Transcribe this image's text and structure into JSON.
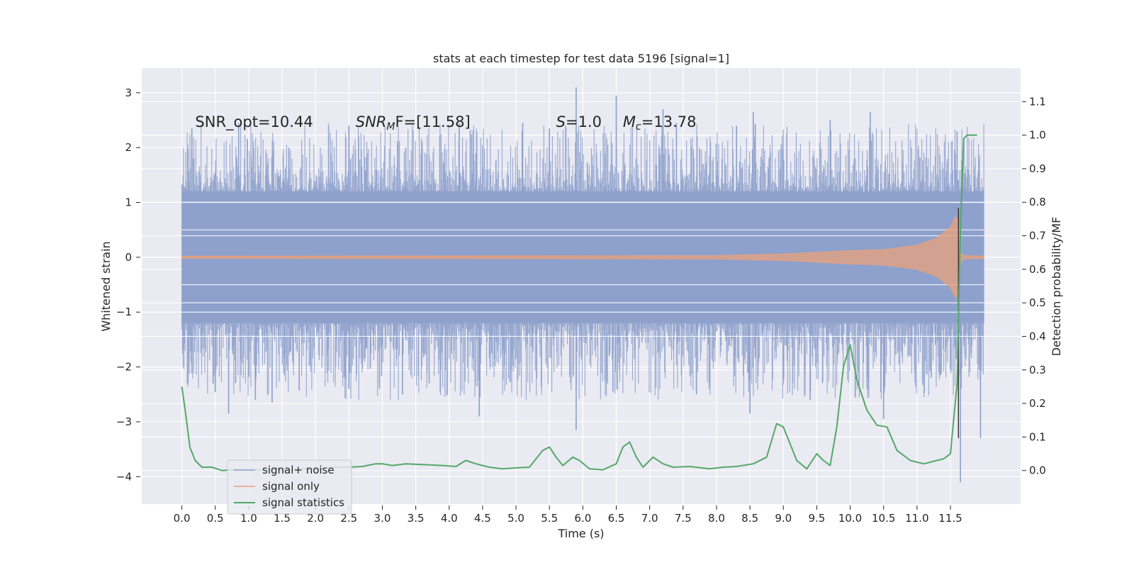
{
  "chart_data": {
    "type": "line",
    "title": "stats at each timestep for test data 5196 [signal=1]",
    "xlabel": "Time (s)",
    "ylabel": "Whitened strain",
    "y2label": "Detection probability/MF",
    "xlim": [
      -0.6,
      12.55
    ],
    "ylim": [
      -4.5,
      3.45
    ],
    "y2lim": [
      -0.1,
      1.2
    ],
    "grid": true,
    "legend_placement": "lower-left",
    "x_ticks": [
      "0.0",
      "0.5",
      "1.0",
      "1.5",
      "2.0",
      "2.5",
      "3.0",
      "3.5",
      "4.0",
      "4.5",
      "5.0",
      "5.5",
      "6.0",
      "6.5",
      "7.0",
      "7.5",
      "8.0",
      "8.5",
      "9.0",
      "9.5",
      "10.0",
      "10.5",
      "11.0",
      "11.5"
    ],
    "y_ticks": [
      "3",
      "2",
      "1",
      "0",
      "−1",
      "−2",
      "−3",
      "−4"
    ],
    "y2_ticks": [
      "1.1",
      "1.0",
      "0.9",
      "0.8",
      "0.7",
      "0.6",
      "0.5",
      "0.4",
      "0.3",
      "0.2",
      "0.1",
      "0.0"
    ],
    "annotations": [
      {
        "prefix": "SNR_opt=10.44",
        "italic": "",
        "sub": "",
        "suffix": ""
      },
      {
        "prefix": "",
        "italic": "SNR",
        "sub": "M",
        "suffix": "F=[11.58]"
      },
      {
        "prefix": "",
        "italic": "S",
        "sub": "",
        "suffix": "=1.0"
      },
      {
        "prefix": "",
        "italic": "M",
        "sub": "c",
        "suffix": "=13.78"
      }
    ],
    "series": [
      {
        "name": "signal+ noise",
        "color": "#8da0cb",
        "t_range": [
          0.0,
          12.0
        ],
        "core_amplitude": 1.2,
        "peaks_x": [
          0.15,
          0.85,
          1.6,
          2.5,
          3.35,
          4.15,
          4.4,
          5.1,
          5.5,
          5.9,
          6.5,
          7.2,
          7.4,
          8.3,
          8.55,
          9.7,
          10.3,
          11.6
        ],
        "peaks_y": [
          2.35,
          2.45,
          2.0,
          2.4,
          2.0,
          2.45,
          1.9,
          2.45,
          2.35,
          3.1,
          2.95,
          2.7,
          2.45,
          2.4,
          2.65,
          2.5,
          2.65,
          2.3
        ],
        "troughs_x": [
          0.7,
          1.1,
          1.35,
          2.5,
          3.3,
          3.7,
          4.45,
          5.9,
          6.45,
          7.7,
          8.5,
          9.4,
          10.5,
          11.35,
          11.65,
          11.95
        ],
        "troughs_y": [
          -2.85,
          -2.6,
          -2.65,
          -2.4,
          -2.5,
          -2.3,
          -2.9,
          -3.15,
          -2.45,
          -2.5,
          -2.85,
          -2.6,
          -2.95,
          -2.15,
          -4.1,
          -3.3
        ]
      },
      {
        "name": "signal only",
        "color": "#e5a17f",
        "x": [
          0.0,
          8.0,
          9.0,
          10.0,
          10.5,
          11.0,
          11.3,
          11.5,
          11.58,
          11.62,
          11.65,
          11.7,
          12.0
        ],
        "envelope": [
          0.02,
          0.03,
          0.06,
          0.12,
          0.14,
          0.22,
          0.35,
          0.55,
          0.75,
          0.6,
          0.1,
          0.03,
          0.02
        ]
      },
      {
        "name": "signal statistics",
        "color": "#55a868",
        "axis": "right",
        "x": [
          0.0,
          0.05,
          0.12,
          0.2,
          0.3,
          0.45,
          0.6,
          0.8,
          1.0,
          1.3,
          1.6,
          1.9,
          2.1,
          2.3,
          2.5,
          2.7,
          2.9,
          3.0,
          3.15,
          3.35,
          3.6,
          3.9,
          4.1,
          4.25,
          4.4,
          4.6,
          4.8,
          5.0,
          5.2,
          5.4,
          5.5,
          5.6,
          5.7,
          5.85,
          5.95,
          6.1,
          6.3,
          6.5,
          6.6,
          6.7,
          6.8,
          6.9,
          7.05,
          7.2,
          7.35,
          7.6,
          7.9,
          8.1,
          8.3,
          8.55,
          8.75,
          8.9,
          9.0,
          9.1,
          9.2,
          9.35,
          9.5,
          9.6,
          9.7,
          9.8,
          9.9,
          10.0,
          10.1,
          10.25,
          10.4,
          10.55,
          10.7,
          10.9,
          11.1,
          11.3,
          11.4,
          11.5,
          11.6,
          11.65,
          11.7,
          11.75,
          11.8,
          11.9
        ],
        "values": [
          0.25,
          0.18,
          0.07,
          0.03,
          0.01,
          0.01,
          0.0,
          0.003,
          0.002,
          0.002,
          0.003,
          0.005,
          0.006,
          0.01,
          0.01,
          0.012,
          0.02,
          0.02,
          0.015,
          0.02,
          0.018,
          0.015,
          0.012,
          0.03,
          0.02,
          0.01,
          0.005,
          0.008,
          0.01,
          0.06,
          0.07,
          0.04,
          0.015,
          0.04,
          0.03,
          0.005,
          0.002,
          0.02,
          0.07,
          0.085,
          0.04,
          0.01,
          0.04,
          0.02,
          0.01,
          0.012,
          0.005,
          0.01,
          0.012,
          0.02,
          0.04,
          0.14,
          0.13,
          0.08,
          0.03,
          0.005,
          0.05,
          0.03,
          0.015,
          0.13,
          0.31,
          0.375,
          0.27,
          0.18,
          0.135,
          0.13,
          0.06,
          0.03,
          0.02,
          0.03,
          0.035,
          0.05,
          0.26,
          0.72,
          0.99,
          1.0,
          1.0,
          1.0
        ]
      }
    ]
  }
}
